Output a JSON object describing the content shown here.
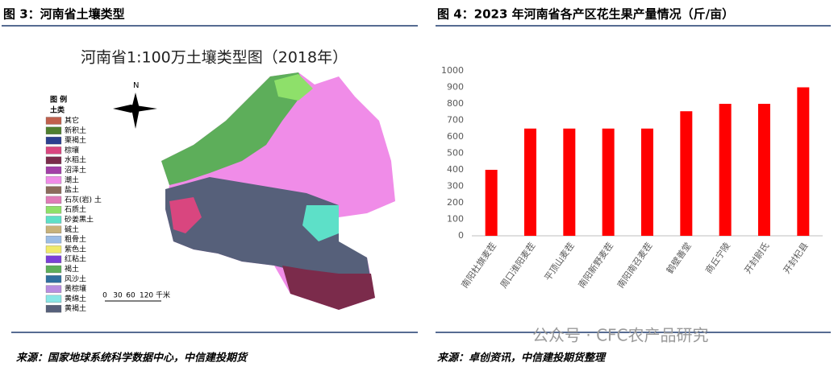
{
  "left": {
    "title": "图 3：河南省土壤类型",
    "map_title": "河南省1:100万土壤类型图（2018年）",
    "north": "N",
    "legend_title": "图 例",
    "legend_subtitle": "土类",
    "legend": [
      {
        "label": "其它",
        "color": "#c0604d"
      },
      {
        "label": "新积土",
        "color": "#4f7f2f"
      },
      {
        "label": "栗褐土",
        "color": "#2b3f8f"
      },
      {
        "label": "棕壤",
        "color": "#d9467f"
      },
      {
        "label": "水稻土",
        "color": "#7b2b4b"
      },
      {
        "label": "沼泽土",
        "color": "#a33fa8"
      },
      {
        "label": "潮土",
        "color": "#f08ce8"
      },
      {
        "label": "盐土",
        "color": "#8b6b5b"
      },
      {
        "label": "石灰(岩) 土",
        "color": "#e07bb8"
      },
      {
        "label": "石质土",
        "color": "#8ee06a"
      },
      {
        "label": "砂姜黑土",
        "color": "#5de0c8"
      },
      {
        "label": "碱土",
        "color": "#c8b27a"
      },
      {
        "label": "粗骨土",
        "color": "#9bbde6"
      },
      {
        "label": "紫色土",
        "color": "#f0ea6a"
      },
      {
        "label": "红粘土",
        "color": "#7a3fd8"
      },
      {
        "label": "褐土",
        "color": "#5dae5a"
      },
      {
        "label": "风沙土",
        "color": "#2f6f9f"
      },
      {
        "label": "黄棕壤",
        "color": "#b88de0"
      },
      {
        "label": "黄绵土",
        "color": "#88e6e6"
      },
      {
        "label": "黄褐土",
        "color": "#56607a"
      }
    ],
    "scale_labels": [
      "0",
      "30",
      "60",
      "120 千米"
    ],
    "source": "来源：国家地球系统科学数据中心，中信建投期货"
  },
  "chart_data": {
    "type": "bar",
    "title": "图 4：2023 年河南省各产区花生果产量情况（斤/亩）",
    "categories": [
      "南阳杜旗麦茬",
      "周口淮阳麦茬",
      "平顶山麦茬",
      "南阳新野麦茬",
      "南阳南召麦茬",
      "鹤壁善堂",
      "商丘宁陵",
      "开封尉氏",
      "开封杞县"
    ],
    "values": [
      400,
      650,
      650,
      650,
      650,
      755,
      800,
      800,
      900
    ],
    "color": "#ff0000",
    "ylim": [
      0,
      1000
    ],
    "yticks": [
      0,
      100,
      200,
      300,
      400,
      500,
      600,
      700,
      800,
      900,
      1000
    ],
    "source": "来源：卓创资讯，中信建投期货整理"
  },
  "watermark": "公众号 · CFC农产品研究"
}
